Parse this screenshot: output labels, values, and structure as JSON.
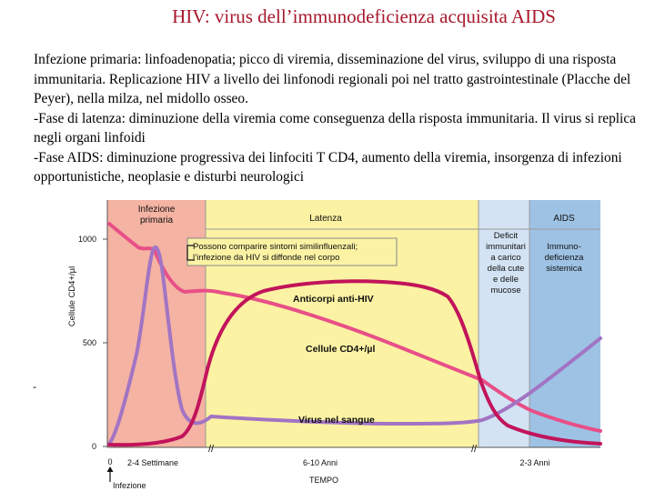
{
  "slide": {
    "title": "HIV: virus dell’immunodeficienza acquisita AIDS",
    "paragraphs": [
      "Infezione primaria: linfoadenopatia; picco di viremia, disseminazione del virus, sviluppo di una risposta immunitaria. Replicazione HIV a livello dei linfonodi regionali poi nel tratto gastrointestinale (Placche del Peyer), nella milza, nel midollo osseo.",
      "-Fase di latenza: diminuzione della viremia come conseguenza della risposta immunitaria. Il virus si replica negli organi linfoidi",
      "-Fase AIDS: diminuzione progressiva dei linfociti T CD4, aumento della viremia, insorgenza di infezioni opportunistiche, neoplasie e disturbi neurologici"
    ],
    "dash": "-"
  },
  "diagram": {
    "phases": {
      "primary": {
        "label_line1": "Infezione",
        "label_line2": "primaria",
        "color": "#f4b3a3"
      },
      "latency": {
        "label": "Latenza",
        "color": "#fbf2a3"
      },
      "deficit": {
        "label_line1": "Deficit",
        "label_line2": "immunitari",
        "label_line3": "a carico",
        "label_line4": "della cute",
        "label_line5": "e delle",
        "label_line6": "mucose",
        "color": "#d3e3f3"
      },
      "aids": {
        "label": "AIDS",
        "label_line1": "Immuno-",
        "label_line2": "deficienza",
        "label_line3": "sistemica",
        "color": "#9ec2e4"
      }
    },
    "callout": {
      "line1": "Possono comparire sintomi similinfluenzali;",
      "line2": "l’infezione da HIV si diffonde nel corpo"
    },
    "y_axis": {
      "title": "Cellule CD4+/µl",
      "ticks": [
        "1000",
        "500",
        "0"
      ]
    },
    "x_axis": {
      "title": "TEMPO",
      "tick_zero": "0",
      "segments": [
        "2-4 Settimane",
        "6-10 Anni",
        "2-3 Anni"
      ],
      "infection_label": "Infezione"
    },
    "curves": {
      "antibodies": {
        "label": "Anticorpi anti-HIV",
        "color": "#c2145a"
      },
      "cd4": {
        "label": "Cellule CD4+/µl",
        "color": "#e84f87"
      },
      "virus": {
        "label": "Virus nel sangue",
        "color": "#a274c4"
      }
    }
  }
}
